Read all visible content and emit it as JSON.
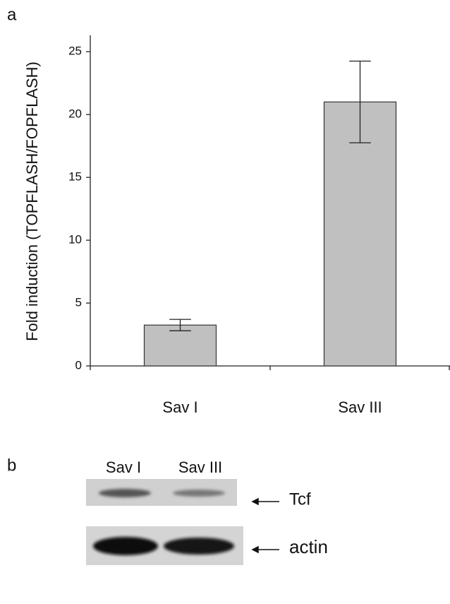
{
  "panel_labels": [
    "a",
    "b"
  ],
  "chart_data": {
    "type": "bar",
    "ylabel": "Fold induction (TOPFLASH/FOPFLASH)",
    "categories": [
      "Sav I",
      "Sav III"
    ],
    "values": [
      3.25,
      21.0
    ],
    "errors": [
      0.45,
      3.25
    ],
    "color": "#c0c0c0",
    "ylim": [
      0,
      26.3
    ],
    "yticks": [
      0,
      5,
      10,
      15,
      20,
      25
    ],
    "grid": false
  },
  "blot": {
    "lanes": [
      "Sav I",
      "Sav III"
    ],
    "bands": [
      "Tcf",
      "actin"
    ]
  }
}
